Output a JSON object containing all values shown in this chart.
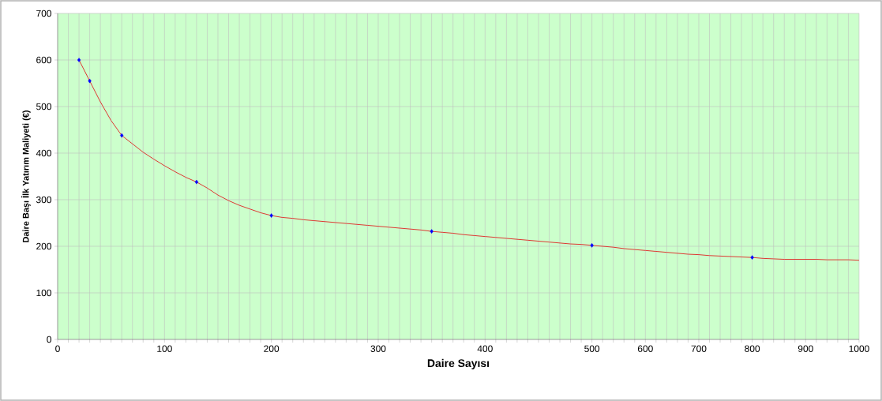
{
  "chart_data": {
    "type": "line",
    "xlabel": "Daire Sayısı",
    "ylabel": "Daire Başı İlk Yatırım Maliyeti (€)",
    "categories": [
      "0",
      null,
      null,
      null,
      null,
      null,
      null,
      null,
      null,
      null,
      "100",
      null,
      null,
      null,
      null,
      null,
      null,
      null,
      null,
      null,
      "200",
      null,
      null,
      null,
      null,
      null,
      null,
      null,
      null,
      null,
      "300",
      null,
      null,
      null,
      null,
      null,
      null,
      null,
      null,
      null,
      "400",
      null,
      null,
      null,
      null,
      null,
      null,
      null,
      null,
      null,
      "500",
      null,
      null,
      null,
      null,
      "600",
      null,
      null,
      null,
      null,
      "700",
      null,
      null,
      null,
      null,
      "800",
      null,
      null,
      null,
      null,
      "900",
      null,
      null,
      null,
      null,
      "1000"
    ],
    "series": [
      {
        "color": "#e02020",
        "marker": "none",
        "values": [
          null,
          null,
          600,
          555,
          510,
          470,
          438,
          420,
          402,
          387,
          373,
          360,
          348,
          338,
          325,
          310,
          298,
          288,
          280,
          272,
          266,
          262,
          260,
          257,
          255,
          253,
          251,
          249,
          247,
          245,
          243,
          241,
          239,
          237,
          235,
          232,
          230,
          228,
          225,
          223,
          221,
          219,
          217,
          215,
          213,
          211,
          209,
          207,
          205,
          204,
          202,
          200,
          198,
          195,
          193,
          191,
          189,
          187,
          185,
          183,
          182,
          180,
          179,
          178,
          177,
          176,
          174,
          173,
          172,
          172,
          172,
          172,
          171,
          171,
          171,
          170
        ]
      },
      {
        "type": "scatter",
        "color": "#0000ff",
        "marker": "diamond",
        "values": [
          null,
          null,
          600,
          555,
          null,
          null,
          438,
          null,
          null,
          null,
          null,
          null,
          null,
          338,
          null,
          null,
          null,
          null,
          null,
          null,
          266,
          null,
          null,
          null,
          null,
          null,
          null,
          null,
          null,
          null,
          null,
          null,
          null,
          null,
          null,
          232,
          null,
          null,
          null,
          null,
          null,
          null,
          null,
          null,
          null,
          null,
          null,
          null,
          null,
          null,
          202,
          null,
          null,
          null,
          null,
          null,
          null,
          null,
          null,
          null,
          null,
          null,
          null,
          null,
          null,
          176,
          null,
          null,
          null,
          null,
          null,
          null,
          null,
          null,
          null,
          null
        ]
      }
    ],
    "ylim": [
      0,
      700
    ],
    "yticks": [
      0,
      100,
      200,
      300,
      400,
      500,
      600,
      700
    ],
    "grid": true
  }
}
